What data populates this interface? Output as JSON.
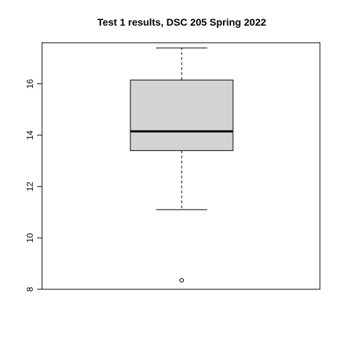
{
  "chart_data": {
    "type": "boxplot",
    "title": "Test 1 results, DSC 205 Spring 2022",
    "xlabel": "",
    "ylabel": "",
    "ylim": [
      8,
      17.6
    ],
    "yticks": [
      "8",
      "10",
      "12",
      "14",
      "16"
    ],
    "grid": false,
    "legend": "none",
    "box": {
      "whisker_low": 11.1,
      "q1": 13.4,
      "median": 14.15,
      "q3": 16.15,
      "whisker_high": 17.4,
      "outliers": [
        8.35
      ]
    },
    "colors": {
      "box_fill": "#d3d3d3",
      "stroke": "#000000"
    }
  }
}
